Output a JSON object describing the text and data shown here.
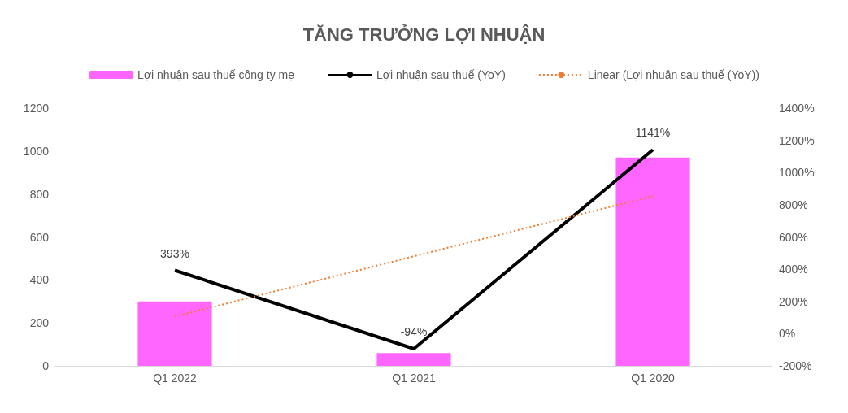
{
  "chart_data": {
    "type": "bar",
    "title": "TĂNG TRƯỞNG LỢI NHUẬN",
    "categories": [
      "Q1 2022",
      "Q1 2021",
      "Q1 2020"
    ],
    "series": [
      {
        "name": "Lợi nhuận sau thuế công ty mẹ",
        "color": "#ff66ff",
        "values": [
          300,
          60,
          970
        ]
      },
      {
        "name": "Lợi nhuận sau thuế (YoY)",
        "type": "line",
        "color": "#000000",
        "axis": "y2",
        "values": [
          393,
          -94,
          1141
        ],
        "value_labels": [
          "393%",
          "-94%",
          "1141%"
        ],
        "marker": "none",
        "line_style": "solid"
      },
      {
        "name": "Linear (Lợi nhuận sau thuế (YoY))",
        "type": "line",
        "color": "#ed7d31",
        "axis": "y2",
        "values": [
          106,
          480,
          854
        ],
        "marker": "none",
        "line_style": "dotted"
      }
    ],
    "ylim": [
      0,
      1200
    ],
    "yticks": [
      0,
      200,
      400,
      600,
      800,
      1000,
      1200
    ],
    "y2lim": [
      -200,
      1400
    ],
    "y2ticks": [
      {
        "value": -200,
        "label": "-200%"
      },
      {
        "value": 0,
        "label": "0%"
      },
      {
        "value": 200,
        "label": "200%"
      },
      {
        "value": 400,
        "label": "400%"
      },
      {
        "value": 600,
        "label": "600%"
      },
      {
        "value": 800,
        "label": "800%"
      },
      {
        "value": 1000,
        "label": "1000%"
      },
      {
        "value": 1200,
        "label": "1200%"
      },
      {
        "value": 1400,
        "label": "1400%"
      }
    ],
    "grid": false,
    "legend": "top"
  }
}
